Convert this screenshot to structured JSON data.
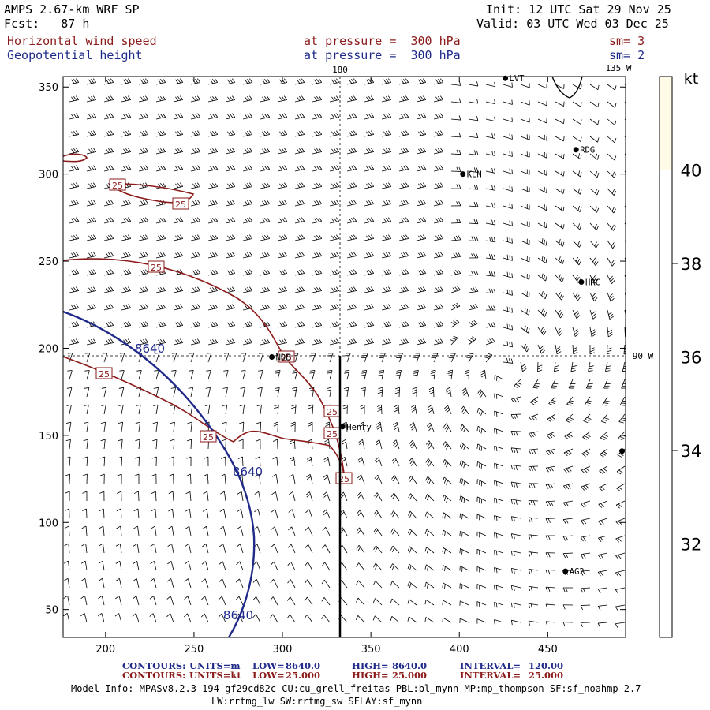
{
  "header": {
    "model": "AMPS 2.67-km WRF SP",
    "fcst": "Fcst:   87 h",
    "init": "Init: 12 UTC Sat 29 Nov 25",
    "valid": "Valid: 03 UTC Wed 03 Dec 25",
    "field1_name": "Horizontal wind speed",
    "field1_level": "at pressure =  300 hPa",
    "field1_smooth": "sm= 3",
    "field2_name": "Geopotential height",
    "field2_level": "at pressure =  300 hPa",
    "field2_smooth": "sm= 2"
  },
  "colors": {
    "wind_contour": "#8b1a1a",
    "height_contour": "#1f2a8a",
    "barbs": "#000000",
    "colorbar_fill": "#fffbe6"
  },
  "chart_data": {
    "type": "contour",
    "x_ticks": [
      200,
      250,
      300,
      350,
      400,
      450
    ],
    "y_ticks": [
      50,
      100,
      150,
      200,
      250,
      300,
      350
    ],
    "xlim": [
      176,
      494
    ],
    "ylim": [
      34,
      356
    ],
    "meridian_labels": [
      "180",
      "135 W",
      "90 W"
    ],
    "stations": [
      {
        "name": "LVT",
        "x": 426,
        "y": 355
      },
      {
        "name": "RDG",
        "x": 466,
        "y": 314
      },
      {
        "name": "KLN",
        "x": 402,
        "y": 300
      },
      {
        "name": "HRC",
        "x": 469,
        "y": 238
      },
      {
        "name": "NDB",
        "x": 294,
        "y": 195
      },
      {
        "name": "Henry",
        "x": 334,
        "y": 155
      },
      {
        "name": "AG2",
        "x": 460,
        "y": 72
      },
      {
        "name": "",
        "x": 492,
        "y": 141
      }
    ],
    "wind_contour_label": "25",
    "height_contour_label": "8640",
    "colorbar": {
      "unit": "kt",
      "ticks": [
        32,
        34,
        36,
        38,
        40
      ],
      "range": [
        30,
        42
      ],
      "filled_above": 40
    },
    "contour_info": [
      {
        "label": "CONTOURS:",
        "units": "UNITS=m",
        "low_label": "LOW=",
        "low": "8640.0",
        "high_label": "HIGH=",
        "high": "8640.0",
        "interval_label": "INTERVAL=",
        "interval": "120.00"
      },
      {
        "label": "CONTOURS:",
        "units": "UNITS=kt",
        "low_label": "LOW=",
        "low": "25.000",
        "high_label": "HIGH=",
        "high": "25.000",
        "interval_label": "INTERVAL=",
        "interval": "25.000"
      }
    ]
  },
  "model_info_line1": "Model Info: MPASv8.2.3-194-gf29cd82c CU:cu_grell_freitas PBL:bl_mynn MP:mp_thompson SF:sf_noahmp 2.7",
  "model_info_line2": "LW:rrtmg_lw SW:rrtmg_sw SFLAY:sf_mynn"
}
